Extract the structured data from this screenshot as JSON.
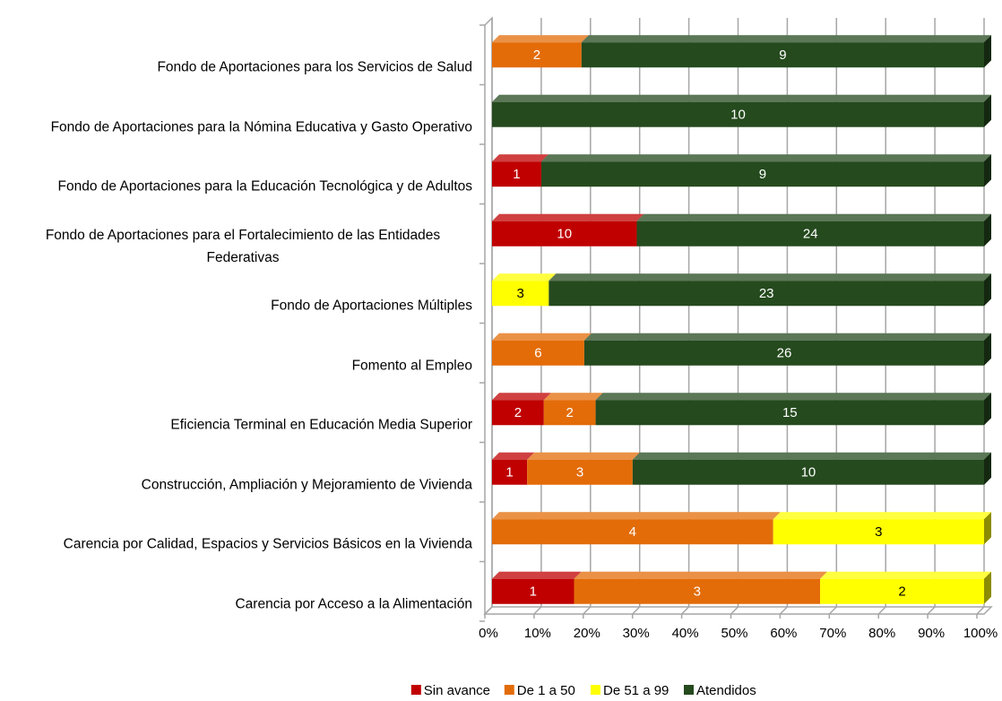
{
  "chart_data": {
    "type": "bar",
    "orientation": "horizontal",
    "stacking": "percent",
    "categories": [
      "Fondo de Aportaciones para los Servicios de Salud",
      "Fondo de Aportaciones para la Nómina Educativa y Gasto Operativo",
      "Fondo de Aportaciones para la Educación Tecnológica y de Adultos",
      "Fondo de Aportaciones para el Fortalecimiento de las Entidades Federativas",
      "Fondo de Aportaciones Múltiples",
      "Fomento al Empleo",
      "Eficiencia Terminal en Educación Media Superior",
      "Construcción, Ampliación y Mejoramiento de Vivienda",
      "Carencia por Calidad, Espacios y Servicios Básicos en la Vivienda",
      "Carencia por Acceso a la Alimentación"
    ],
    "series": [
      {
        "name": "Sin avance",
        "color": "#c00000",
        "values": [
          0,
          0,
          1,
          10,
          0,
          0,
          2,
          1,
          0,
          1
        ]
      },
      {
        "name": "De 1 a 50",
        "color": "#e36c09",
        "values": [
          2,
          0,
          0,
          0,
          0,
          6,
          2,
          3,
          4,
          3
        ]
      },
      {
        "name": "De 51 a 99",
        "color": "#ffff00",
        "values": [
          0,
          0,
          0,
          0,
          3,
          0,
          0,
          0,
          3,
          2
        ]
      },
      {
        "name": "Atendidos",
        "color": "#254a1e",
        "values": [
          9,
          10,
          9,
          24,
          23,
          26,
          15,
          10,
          0,
          0
        ]
      }
    ],
    "xlim": [
      0,
      100
    ],
    "xticks": [
      {
        "value": 0,
        "label": "0%"
      },
      {
        "value": 10,
        "label": "10%"
      },
      {
        "value": 20,
        "label": "20%"
      },
      {
        "value": 30,
        "label": "30%"
      },
      {
        "value": 40,
        "label": "40%"
      },
      {
        "value": 50,
        "label": "50%"
      },
      {
        "value": 60,
        "label": "60%"
      },
      {
        "value": 70,
        "label": "70%"
      },
      {
        "value": 80,
        "label": "80%"
      },
      {
        "value": 90,
        "label": "90%"
      },
      {
        "value": 100,
        "label": "100%"
      }
    ],
    "grid": true,
    "legend": "bottom"
  }
}
